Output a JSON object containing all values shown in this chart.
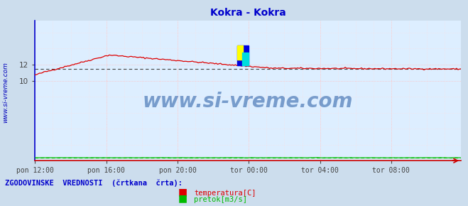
{
  "title": "Kokra - Kokra",
  "title_color": "#0000cc",
  "bg_color": "#ccdded",
  "plot_bg_color": "#ddeeff",
  "grid_color": "#ffaaaa",
  "ylabel_text": "www.si-vreme.com",
  "ylabel_color": "#0000bb",
  "xlabel_ticks": [
    "pon 12:00",
    "pon 16:00",
    "pon 20:00",
    "tor 00:00",
    "tor 04:00",
    "tor 08:00"
  ],
  "xtick_positions": [
    0,
    48,
    96,
    144,
    192,
    240
  ],
  "n_points": 288,
  "ylim": [
    0,
    17.5
  ],
  "yticks": [
    10,
    12
  ],
  "temp_color": "#dd0000",
  "flow_color": "#00bb00",
  "avg_temp_color": "#444444",
  "avg_flow_color": "#00bb00",
  "legend_text1": "temperatura[C]",
  "legend_text2": "pretok[m3/s]",
  "legend_color1": "#dd0000",
  "legend_color2": "#00bb00",
  "footer_text": "ZGODOVINSKE  VREDNOSTI  (črtkana  črta):",
  "footer_color": "#0000cc",
  "watermark": "www.si-vreme.com",
  "watermark_color": "#3366aa",
  "spine_bottom_color": "#cc0000",
  "spine_left_color": "#0000cc"
}
